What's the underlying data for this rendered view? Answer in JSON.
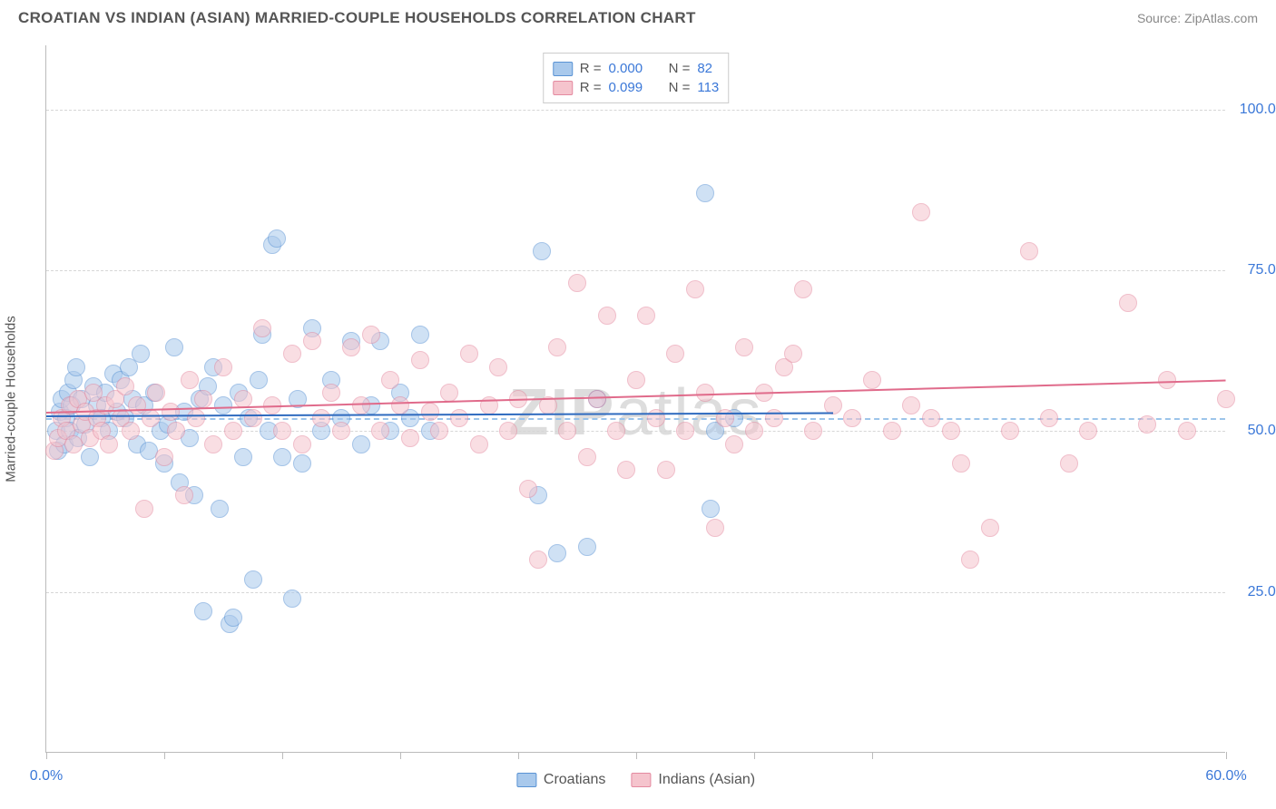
{
  "title": "CROATIAN VS INDIAN (ASIAN) MARRIED-COUPLE HOUSEHOLDS CORRELATION CHART",
  "source_label": "Source: ",
  "source_name": "ZipAtlas.com",
  "ylabel": "Married-couple Households",
  "watermark": "ZIPatlas",
  "chart": {
    "type": "scatter",
    "xlim": [
      0,
      60
    ],
    "ylim": [
      0,
      110
    ],
    "xticks": [
      0,
      6,
      12,
      18,
      24,
      30,
      36,
      42,
      60
    ],
    "xtick_labels_shown": {
      "0": "0.0%",
      "60": "60.0%"
    },
    "ygrid": [
      25,
      50,
      75,
      100
    ],
    "ytick_labels": {
      "25": "25.0%",
      "50": "50.0%",
      "75": "75.0%",
      "100": "100.0%"
    },
    "background_color": "#ffffff",
    "grid_color": "#d6d6d6",
    "axis_color": "#bbbbbb",
    "tick_label_color": "#3b78d8",
    "marker_radius": 10,
    "marker_opacity": 0.55,
    "midline_y": 52,
    "midline_color": "#9cc4ea"
  },
  "series": [
    {
      "name": "Croatians",
      "fill": "#a9c9ec",
      "stroke": "#5a93d4",
      "r": "0.000",
      "n": "82",
      "trend": {
        "x1": 0,
        "y1": 52.5,
        "x2": 40,
        "y2": 53.0,
        "color": "#2f6bbf",
        "width": 2
      },
      "points": [
        [
          0.5,
          50
        ],
        [
          0.6,
          47
        ],
        [
          0.7,
          53
        ],
        [
          0.8,
          55
        ],
        [
          0.9,
          48
        ],
        [
          1.0,
          52
        ],
        [
          1.1,
          56
        ],
        [
          1.2,
          50
        ],
        [
          1.3,
          54
        ],
        [
          1.4,
          58
        ],
        [
          1.5,
          60
        ],
        [
          1.6,
          49
        ],
        [
          1.8,
          55
        ],
        [
          2.0,
          51
        ],
        [
          2.2,
          46
        ],
        [
          2.4,
          57
        ],
        [
          2.6,
          54
        ],
        [
          2.8,
          52
        ],
        [
          3.0,
          56
        ],
        [
          3.2,
          50
        ],
        [
          3.4,
          59
        ],
        [
          3.6,
          53
        ],
        [
          3.8,
          58
        ],
        [
          4.0,
          52
        ],
        [
          4.2,
          60
        ],
        [
          4.4,
          55
        ],
        [
          4.6,
          48
        ],
        [
          4.8,
          62
        ],
        [
          5.0,
          54
        ],
        [
          5.2,
          47
        ],
        [
          5.5,
          56
        ],
        [
          5.8,
          50
        ],
        [
          6.0,
          45
        ],
        [
          6.2,
          51
        ],
        [
          6.5,
          63
        ],
        [
          6.8,
          42
        ],
        [
          7.0,
          53
        ],
        [
          7.3,
          49
        ],
        [
          7.5,
          40
        ],
        [
          7.8,
          55
        ],
        [
          8.0,
          22
        ],
        [
          8.2,
          57
        ],
        [
          8.5,
          60
        ],
        [
          8.8,
          38
        ],
        [
          9.0,
          54
        ],
        [
          9.3,
          20
        ],
        [
          9.5,
          21
        ],
        [
          9.8,
          56
        ],
        [
          10.0,
          46
        ],
        [
          10.3,
          52
        ],
        [
          10.5,
          27
        ],
        [
          10.8,
          58
        ],
        [
          11.0,
          65
        ],
        [
          11.3,
          50
        ],
        [
          11.5,
          79
        ],
        [
          11.7,
          80
        ],
        [
          12.0,
          46
        ],
        [
          12.5,
          24
        ],
        [
          12.8,
          55
        ],
        [
          13.0,
          45
        ],
        [
          13.5,
          66
        ],
        [
          14.0,
          50
        ],
        [
          14.5,
          58
        ],
        [
          15.0,
          52
        ],
        [
          15.5,
          64
        ],
        [
          16.0,
          48
        ],
        [
          16.5,
          54
        ],
        [
          17.0,
          64
        ],
        [
          17.5,
          50
        ],
        [
          18.0,
          56
        ],
        [
          18.5,
          52
        ],
        [
          19.0,
          65
        ],
        [
          19.5,
          50
        ],
        [
          25.0,
          40
        ],
        [
          25.2,
          78
        ],
        [
          26.0,
          31
        ],
        [
          27.5,
          32
        ],
        [
          28.0,
          55
        ],
        [
          33.5,
          87
        ],
        [
          33.8,
          38
        ],
        [
          34.0,
          50
        ],
        [
          35.0,
          52
        ]
      ]
    },
    {
      "name": "Indians (Asian)",
      "fill": "#f5c4cd",
      "stroke": "#e48aa0",
      "r": "0.099",
      "n": "113",
      "trend": {
        "x1": 0,
        "y1": 53,
        "x2": 60,
        "y2": 58,
        "color": "#e06b8b",
        "width": 2
      },
      "points": [
        [
          0.4,
          47
        ],
        [
          0.6,
          49
        ],
        [
          0.8,
          52
        ],
        [
          1.0,
          50
        ],
        [
          1.2,
          54
        ],
        [
          1.4,
          48
        ],
        [
          1.6,
          55
        ],
        [
          1.8,
          51
        ],
        [
          2.0,
          53
        ],
        [
          2.2,
          49
        ],
        [
          2.4,
          56
        ],
        [
          2.6,
          52
        ],
        [
          2.8,
          50
        ],
        [
          3.0,
          54
        ],
        [
          3.2,
          48
        ],
        [
          3.5,
          55
        ],
        [
          3.8,
          52
        ],
        [
          4.0,
          57
        ],
        [
          4.3,
          50
        ],
        [
          4.6,
          54
        ],
        [
          5.0,
          38
        ],
        [
          5.3,
          52
        ],
        [
          5.6,
          56
        ],
        [
          6.0,
          46
        ],
        [
          6.3,
          53
        ],
        [
          6.6,
          50
        ],
        [
          7.0,
          40
        ],
        [
          7.3,
          58
        ],
        [
          7.6,
          52
        ],
        [
          8.0,
          55
        ],
        [
          8.5,
          48
        ],
        [
          9.0,
          60
        ],
        [
          9.5,
          50
        ],
        [
          10.0,
          55
        ],
        [
          10.5,
          52
        ],
        [
          11.0,
          66
        ],
        [
          11.5,
          54
        ],
        [
          12.0,
          50
        ],
        [
          12.5,
          62
        ],
        [
          13.0,
          48
        ],
        [
          13.5,
          64
        ],
        [
          14.0,
          52
        ],
        [
          14.5,
          56
        ],
        [
          15.0,
          50
        ],
        [
          15.5,
          63
        ],
        [
          16.0,
          54
        ],
        [
          16.5,
          65
        ],
        [
          17.0,
          50
        ],
        [
          17.5,
          58
        ],
        [
          18.0,
          54
        ],
        [
          18.5,
          49
        ],
        [
          19.0,
          61
        ],
        [
          19.5,
          53
        ],
        [
          20.0,
          50
        ],
        [
          20.5,
          56
        ],
        [
          21.0,
          52
        ],
        [
          21.5,
          62
        ],
        [
          22.0,
          48
        ],
        [
          22.5,
          54
        ],
        [
          23.0,
          60
        ],
        [
          23.5,
          50
        ],
        [
          24.0,
          55
        ],
        [
          24.5,
          41
        ],
        [
          25.0,
          30
        ],
        [
          25.5,
          54
        ],
        [
          26.0,
          63
        ],
        [
          26.5,
          50
        ],
        [
          27.0,
          73
        ],
        [
          27.5,
          46
        ],
        [
          28.0,
          55
        ],
        [
          28.5,
          68
        ],
        [
          29.0,
          50
        ],
        [
          29.5,
          44
        ],
        [
          30.0,
          58
        ],
        [
          30.5,
          68
        ],
        [
          31.0,
          52
        ],
        [
          31.5,
          44
        ],
        [
          32.0,
          62
        ],
        [
          32.5,
          50
        ],
        [
          33.0,
          72
        ],
        [
          33.5,
          56
        ],
        [
          34.0,
          35
        ],
        [
          34.5,
          52
        ],
        [
          35.0,
          48
        ],
        [
          35.5,
          63
        ],
        [
          36.0,
          50
        ],
        [
          36.5,
          56
        ],
        [
          37.0,
          52
        ],
        [
          37.5,
          60
        ],
        [
          38.0,
          62
        ],
        [
          38.5,
          72
        ],
        [
          39.0,
          50
        ],
        [
          40.0,
          54
        ],
        [
          41.0,
          52
        ],
        [
          42.0,
          58
        ],
        [
          43.0,
          50
        ],
        [
          44.0,
          54
        ],
        [
          44.5,
          84
        ],
        [
          45.0,
          52
        ],
        [
          46.0,
          50
        ],
        [
          46.5,
          45
        ],
        [
          47.0,
          30
        ],
        [
          48.0,
          35
        ],
        [
          49.0,
          50
        ],
        [
          50.0,
          78
        ],
        [
          51.0,
          52
        ],
        [
          52.0,
          45
        ],
        [
          53.0,
          50
        ],
        [
          55.0,
          70
        ],
        [
          56.0,
          51
        ],
        [
          57.0,
          58
        ],
        [
          58.0,
          50
        ],
        [
          60.0,
          55
        ]
      ]
    }
  ],
  "legend_bottom": [
    {
      "swatch_fill": "#a9c9ec",
      "swatch_stroke": "#5a93d4",
      "label": "Croatians"
    },
    {
      "swatch_fill": "#f5c4cd",
      "swatch_stroke": "#e48aa0",
      "label": "Indians (Asian)"
    }
  ]
}
